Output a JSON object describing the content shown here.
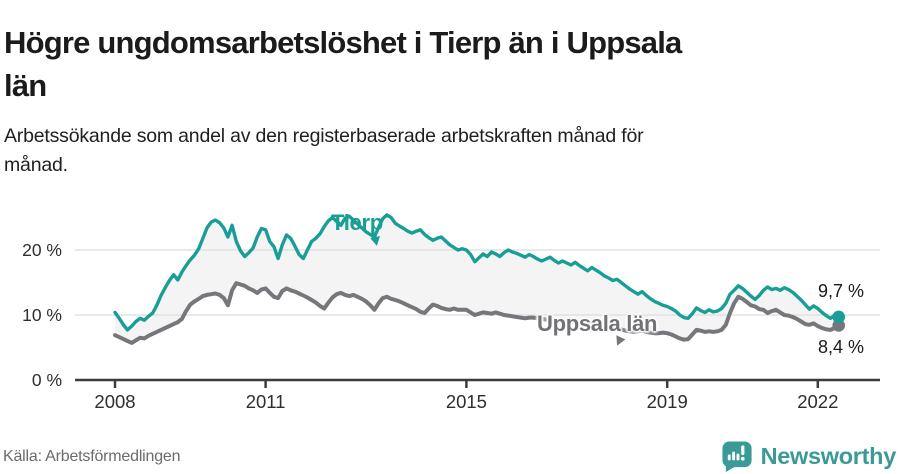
{
  "header": {
    "title": "Högre ungdomsarbetslöshet i Tierp än i Uppsala län",
    "subtitle": "Arbetssökande som andel av den registerbaserade arbetskraften månad för månad."
  },
  "chart_data": {
    "type": "line",
    "title": "Högre ungdomsarbetslöshet i Tierp än i Uppsala län",
    "x_start": "2008-01",
    "x_end": "2022-06",
    "x_step_months": 1,
    "ylim": [
      0,
      28
    ],
    "grid": "horizontal",
    "legend_position": "inline-labels",
    "y_ticks": [
      {
        "value": 0,
        "label": "0 %"
      },
      {
        "value": 10,
        "label": "10 %"
      },
      {
        "value": 20,
        "label": "20 %"
      }
    ],
    "x_ticks": [
      {
        "value": 2008,
        "label": "2008"
      },
      {
        "value": 2011,
        "label": "2011"
      },
      {
        "value": 2015,
        "label": "2015"
      },
      {
        "value": 2019,
        "label": "2019"
      },
      {
        "value": 2022,
        "label": "2022"
      }
    ],
    "fill_between_color": "#f4f4f4",
    "series": [
      {
        "name": "Tierp",
        "color": "#199e97",
        "end_label": "9,7 %",
        "end_value": 9.7,
        "values": [
          10.4,
          9.5,
          8.5,
          7.7,
          8.3,
          9.0,
          9.5,
          9.2,
          9.8,
          10.3,
          11.5,
          13.0,
          14.2,
          15.3,
          16.2,
          15.4,
          16.6,
          17.6,
          18.5,
          19.2,
          20.2,
          21.8,
          23.4,
          24.3,
          24.6,
          24.2,
          23.4,
          22.0,
          23.8,
          21.3,
          19.9,
          19.0,
          19.6,
          20.3,
          22.0,
          23.3,
          23.1,
          21.3,
          20.5,
          18.7,
          20.8,
          22.3,
          21.8,
          20.6,
          19.3,
          18.7,
          20.0,
          21.3,
          21.8,
          22.5,
          23.6,
          24.5,
          25.0,
          24.4,
          23.8,
          24.9,
          25.2,
          24.6,
          24.0,
          23.4,
          22.8,
          22.4,
          22.0,
          23.5,
          24.8,
          25.4,
          25.0,
          24.1,
          23.7,
          23.3,
          22.9,
          22.6,
          22.9,
          23.1,
          22.4,
          21.9,
          21.5,
          21.8,
          22.0,
          21.4,
          20.8,
          20.4,
          20.0,
          20.2,
          20.0,
          19.3,
          18.2,
          18.8,
          19.4,
          19.0,
          19.7,
          19.4,
          19.0,
          19.6,
          20.0,
          19.7,
          19.5,
          19.2,
          18.9,
          19.3,
          19.0,
          18.6,
          18.3,
          18.6,
          18.9,
          18.4,
          18.0,
          18.3,
          18.0,
          17.7,
          18.1,
          17.6,
          17.2,
          16.8,
          17.3,
          16.9,
          16.5,
          16.0,
          15.7,
          15.3,
          15.5,
          15.0,
          14.5,
          14.0,
          13.6,
          13.2,
          13.6,
          13.0,
          12.5,
          12.1,
          11.8,
          11.5,
          11.3,
          11.0,
          10.6,
          10.0,
          9.6,
          9.5,
          10.2,
          11.1,
          10.7,
          10.4,
          10.8,
          10.5,
          10.6,
          11.0,
          11.8,
          13.2,
          13.8,
          14.5,
          14.1,
          13.5,
          12.9,
          12.4,
          13.0,
          13.8,
          14.3,
          13.9,
          14.1,
          13.8,
          14.2,
          13.9,
          13.5,
          12.9,
          12.3,
          11.6,
          10.9,
          11.4,
          11.0,
          10.4,
          9.9,
          9.5,
          9.9,
          9.7
        ]
      },
      {
        "name": "Uppsala län",
        "color": "#76767b",
        "end_label": "8,4 %",
        "end_value": 8.4,
        "values": [
          6.9,
          6.6,
          6.3,
          6.0,
          5.7,
          6.1,
          6.5,
          6.4,
          6.8,
          7.1,
          7.4,
          7.7,
          8.0,
          8.3,
          8.6,
          8.9,
          9.4,
          10.6,
          11.6,
          12.1,
          12.5,
          12.9,
          13.1,
          13.2,
          13.3,
          13.1,
          12.6,
          11.5,
          13.8,
          14.9,
          14.7,
          14.5,
          14.1,
          13.8,
          13.4,
          13.9,
          14.1,
          13.4,
          12.8,
          12.6,
          13.7,
          14.1,
          13.8,
          13.6,
          13.3,
          13.0,
          12.7,
          12.3,
          11.9,
          11.4,
          11.0,
          11.9,
          12.7,
          13.2,
          13.4,
          13.1,
          12.9,
          13.1,
          12.8,
          12.5,
          12.1,
          11.5,
          10.8,
          11.8,
          12.6,
          12.8,
          12.5,
          12.3,
          12.1,
          11.8,
          11.5,
          11.2,
          10.9,
          10.5,
          10.3,
          11.0,
          11.6,
          11.4,
          11.1,
          10.9,
          10.8,
          11.0,
          10.8,
          10.8,
          10.8,
          10.4,
          10.0,
          10.2,
          10.4,
          10.3,
          10.2,
          10.4,
          10.2,
          10.0,
          9.9,
          9.8,
          9.7,
          9.6,
          9.5,
          9.6,
          9.6,
          9.5,
          9.4,
          9.3,
          9.3,
          9.2,
          9.1,
          9.0,
          9.0,
          8.9,
          8.8,
          8.8,
          8.9,
          8.8,
          8.7,
          8.6,
          8.5,
          8.4,
          8.3,
          8.2,
          8.0,
          7.8,
          7.6,
          7.5,
          7.4,
          7.5,
          7.6,
          7.4,
          7.3,
          7.2,
          7.2,
          7.3,
          7.2,
          7.0,
          6.7,
          6.4,
          6.2,
          6.3,
          7.0,
          7.7,
          7.6,
          7.4,
          7.5,
          7.4,
          7.5,
          7.7,
          8.5,
          10.3,
          11.8,
          12.8,
          12.5,
          12.0,
          11.5,
          11.3,
          10.9,
          10.8,
          10.3,
          10.6,
          10.8,
          10.4,
          10.0,
          9.9,
          9.7,
          9.4,
          9.0,
          8.6,
          8.5,
          8.7,
          8.3,
          8.0,
          7.8,
          7.7,
          8.0,
          8.4
        ]
      }
    ]
  },
  "annotations": {
    "tierp_label": "Tierp",
    "uppsala_label": "Uppsala län",
    "tierp_end_label": "9,7 %",
    "uppsala_end_label": "8,4 %"
  },
  "footer": {
    "source": "Källa: Arbetsförmedlingen",
    "brand": "Newsworthy"
  },
  "colors": {
    "tierp_line": "#199e97",
    "uppsala_line": "#76767b",
    "fill_between": "#f4f4f4",
    "gridline": "#e2e2e2",
    "axis": "#3d3d3d",
    "tick_label": "#2e2e2e",
    "brand_teal": "#3a9a95"
  }
}
